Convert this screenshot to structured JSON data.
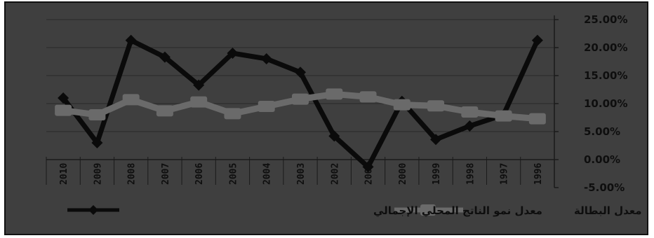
{
  "chart_data": {
    "type": "line",
    "title": "",
    "xlabel": "",
    "ylabel": "",
    "categories": [
      "2010",
      "2009",
      "2008",
      "2007",
      "2006",
      "2005",
      "2004",
      "2003",
      "2002",
      "2001",
      "2000",
      "1999",
      "1998",
      "1997",
      "1996"
    ],
    "ylim": [
      -0.05,
      0.25
    ],
    "y_ticks": [
      "25.00%",
      "20.00%",
      "15.00%",
      "10.00%",
      "5.00%",
      "0.00%",
      "-5.00%"
    ],
    "x_axis_direction": "right-to-left",
    "y_axis_position": "right",
    "grid": true,
    "legend_position": "bottom",
    "series": [
      {
        "name": "معدل نمو الناتج المحلي الإجمالي",
        "color": "#0a0a0a",
        "marker": "diamond",
        "values": [
          0.11,
          0.03,
          0.213,
          0.183,
          0.133,
          0.19,
          0.18,
          0.156,
          0.042,
          -0.013,
          0.104,
          0.036,
          0.06,
          0.08,
          0.213
        ]
      },
      {
        "name": "معدل البطالة",
        "color": "#6a6a6a",
        "marker": "square",
        "values": [
          0.088,
          0.08,
          0.107,
          0.087,
          0.103,
          0.082,
          0.095,
          0.108,
          0.117,
          0.112,
          0.098,
          0.096,
          0.085,
          0.078,
          0.073
        ]
      }
    ]
  }
}
